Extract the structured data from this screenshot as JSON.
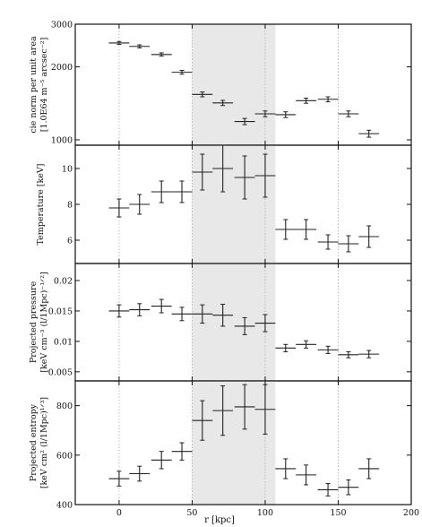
{
  "chart_data": [
    {
      "type": "scatter",
      "ylabel": [
        "cie norm per unit area",
        "[1.0E64 m⁻⁵ arcsec⁻²]"
      ],
      "ylim": [
        950,
        3000
      ],
      "log_y": true,
      "yticks": [
        1000,
        2000,
        3000
      ],
      "x": [
        0,
        14,
        29,
        43,
        57,
        71,
        86,
        100,
        114,
        128,
        143,
        157,
        171
      ],
      "xerr": [
        7,
        7,
        7,
        7,
        7,
        7,
        7,
        7,
        7,
        7,
        7,
        7,
        7
      ],
      "y": [
        2510,
        2430,
        2250,
        1900,
        1540,
        1420,
        1190,
        1280,
        1270,
        1450,
        1470,
        1280,
        1060
      ],
      "yerr": [
        35,
        35,
        35,
        35,
        35,
        35,
        35,
        35,
        35,
        35,
        35,
        35,
        35
      ]
    },
    {
      "type": "scatter",
      "ylabel": [
        "Temperature [keV]"
      ],
      "ylim": [
        4.7,
        11.3
      ],
      "yticks": [
        6,
        8,
        10
      ],
      "x": [
        0,
        14,
        29,
        43,
        57,
        71,
        86,
        100,
        114,
        128,
        143,
        157,
        171
      ],
      "xerr": [
        7,
        7,
        7,
        7,
        7,
        7,
        7,
        7,
        7,
        7,
        7,
        7,
        7
      ],
      "y": [
        7.8,
        8.0,
        8.7,
        8.7,
        9.8,
        10.0,
        9.5,
        9.6,
        6.6,
        6.6,
        5.9,
        5.8,
        6.2
      ],
      "yerr": [
        0.5,
        0.55,
        0.6,
        0.6,
        1.0,
        1.3,
        1.2,
        1.2,
        0.55,
        0.55,
        0.4,
        0.45,
        0.6
      ]
    },
    {
      "type": "scatter",
      "ylabel": [
        "Projected pressure",
        "[keV cm⁻³ (l/1Mpc)⁻¹ᐟ²]"
      ],
      "ylim": [
        0.0035,
        0.0228
      ],
      "yticks": [
        0.005,
        0.01,
        0.015,
        0.02
      ],
      "ytick_labels": [
        "0.005",
        "0.01",
        "0.015",
        "0.02"
      ],
      "x": [
        0,
        14,
        29,
        43,
        57,
        71,
        86,
        100,
        114,
        128,
        143,
        157,
        171
      ],
      "xerr": [
        7,
        7,
        7,
        7,
        7,
        7,
        7,
        7,
        7,
        7,
        7,
        7,
        7
      ],
      "y": [
        0.015,
        0.0152,
        0.0158,
        0.0145,
        0.0145,
        0.0143,
        0.0125,
        0.013,
        0.0089,
        0.0095,
        0.0086,
        0.0078,
        0.0079
      ],
      "yerr": [
        0.001,
        0.001,
        0.0011,
        0.0011,
        0.0015,
        0.0018,
        0.0014,
        0.0014,
        0.0006,
        0.0006,
        0.0006,
        0.0005,
        0.0006
      ]
    },
    {
      "type": "scatter",
      "ylabel": [
        "Projected entropy",
        "[keV cm² (l/1Mpc)¹ᐟ³]"
      ],
      "ylim": [
        400,
        900
      ],
      "yticks": [
        400,
        600,
        800
      ],
      "x": [
        0,
        14,
        29,
        43,
        57,
        71,
        86,
        100,
        114,
        128,
        143,
        157,
        171
      ],
      "xerr": [
        7,
        7,
        7,
        7,
        7,
        7,
        7,
        7,
        7,
        7,
        7,
        7,
        7
      ],
      "y": [
        505,
        525,
        580,
        615,
        740,
        780,
        795,
        785,
        545,
        520,
        460,
        470,
        545
      ],
      "yerr": [
        30,
        30,
        35,
        35,
        80,
        100,
        90,
        100,
        40,
        40,
        25,
        30,
        40
      ],
      "xlabel": "r [kpc]",
      "xticks": [
        0,
        50,
        100,
        150,
        200
      ]
    }
  ],
  "shared_x": {
    "xlim": [
      -30,
      200
    ],
    "xticks": [
      0,
      50,
      100,
      150,
      200
    ],
    "xlabel": "r [kpc]"
  },
  "shaded_band": {
    "x_from": 50,
    "x_to": 107,
    "color": "#e8e8e8"
  },
  "colors": {
    "marker": "#222222",
    "axis": "#111111",
    "grid": "#aaaaaa"
  }
}
